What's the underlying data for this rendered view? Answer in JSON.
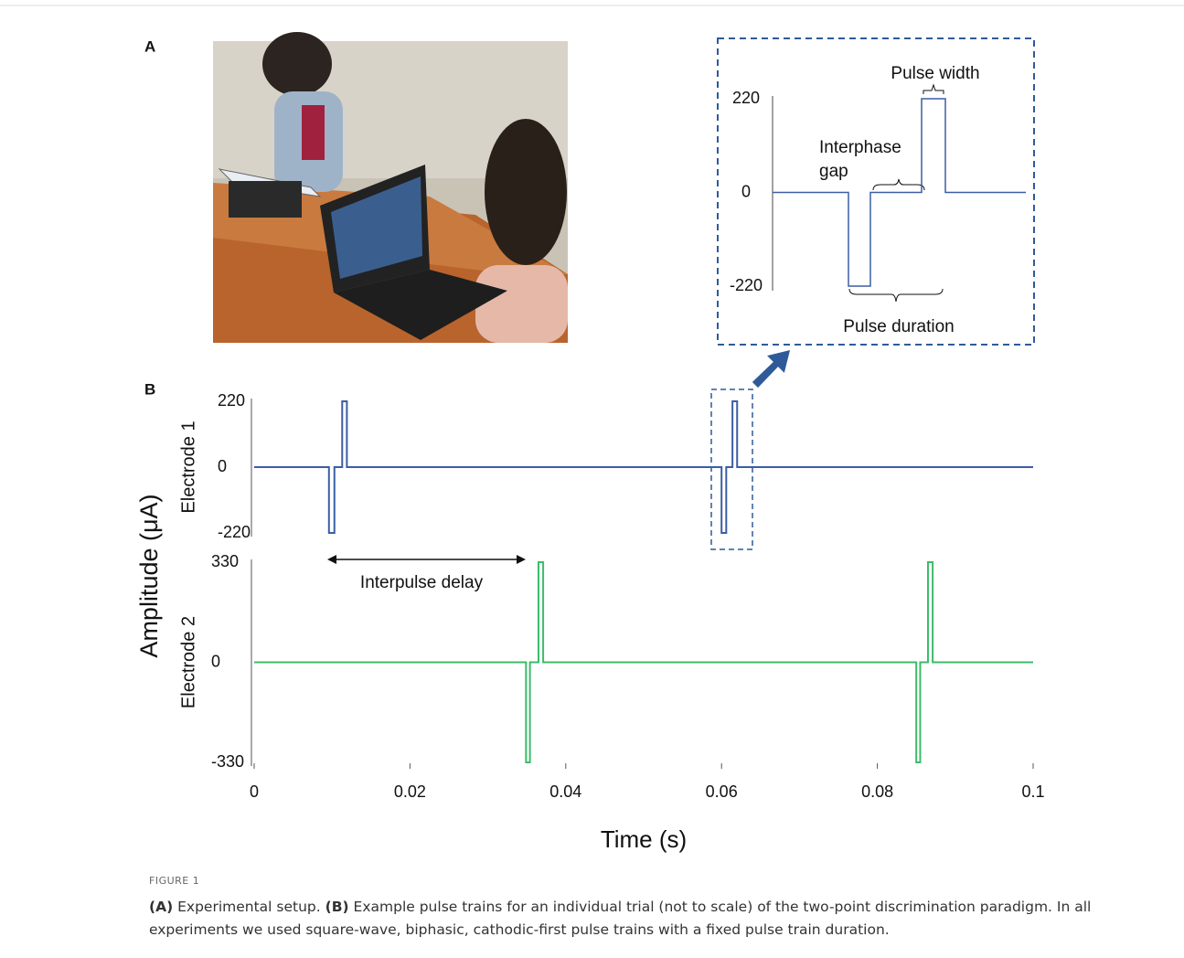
{
  "panel_labels": [
    "A",
    "B"
  ],
  "amplitude_label": "Amplitude (μA)",
  "interpulse_delay": "Interpulse delay",
  "inset": {
    "values": [
      0,
      0,
      -220,
      -220,
      0,
      0,
      220,
      220,
      0,
      0
    ],
    "ylim": [
      -220,
      220
    ],
    "yticks": [
      220,
      0,
      -220
    ],
    "pulse_width": "Pulse width",
    "interphase_gap": [
      "Interphase",
      "gap"
    ],
    "pulse_duration": "Pulse duration"
  },
  "chart_data": [
    {
      "type": "line",
      "ylabel": "Electrode 1",
      "x": [
        0,
        0.0096,
        0.0096,
        0.0103,
        0.0103,
        0.0113,
        0.0113,
        0.0119,
        0.0119,
        0.06,
        0.06,
        0.0606,
        0.0606,
        0.0614,
        0.0614,
        0.062,
        0.062,
        0.1
      ],
      "series": [
        {
          "color": "#3b5ea3",
          "values": [
            0,
            0,
            -220,
            -220,
            0,
            0,
            220,
            220,
            0,
            0,
            -220,
            -220,
            0,
            0,
            220,
            220,
            0,
            0
          ]
        }
      ],
      "xlim": [
        0,
        0.1
      ],
      "ylim": [
        -220,
        220
      ],
      "yticks": [
        220,
        0,
        -220
      ]
    },
    {
      "type": "line",
      "ylabel": "Electrode 2",
      "xlabel": "Time (s)",
      "x": [
        0,
        0.0349,
        0.0349,
        0.0354,
        0.0354,
        0.0365,
        0.0365,
        0.0371,
        0.0371,
        0.085,
        0.085,
        0.0855,
        0.0855,
        0.0865,
        0.0865,
        0.0871,
        0.0871,
        0.1
      ],
      "series": [
        {
          "color": "#3dbb6a",
          "values": [
            0,
            0,
            -330,
            -330,
            0,
            0,
            330,
            330,
            0,
            0,
            -330,
            -330,
            0,
            0,
            330,
            330,
            0,
            0
          ]
        }
      ],
      "xlim": [
        0,
        0.1
      ],
      "ylim": [
        -330,
        330
      ],
      "yticks": [
        330,
        0,
        -330
      ],
      "xticks": [
        0,
        0.02,
        0.04,
        0.06,
        0.08,
        0.1
      ]
    }
  ],
  "caption": {
    "figure": "FIGURE 1",
    "a_tag": "(A)",
    "a_text": "Experimental setup.",
    "b_tag": "(B)",
    "b_text": "Example pulse trains for an individual trial (not to scale) of the two-point discrimination paradigm. In all experiments we used square-wave, biphasic, cathodic-first pulse trains with a fixed pulse train duration."
  }
}
